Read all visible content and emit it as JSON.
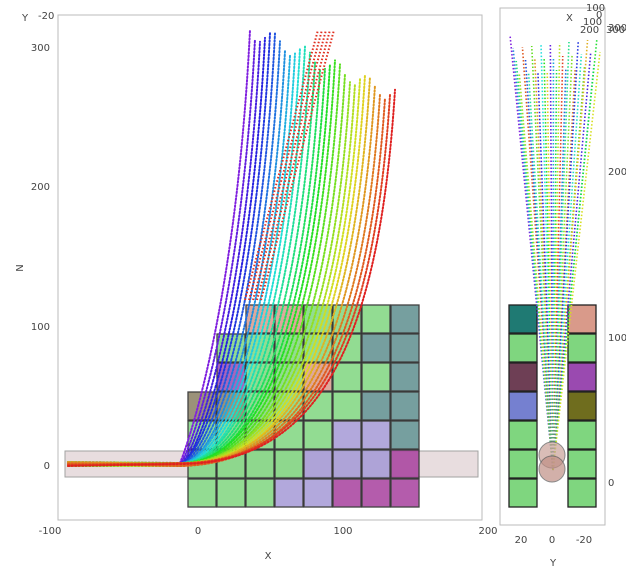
{
  "left_view": {
    "x_axis": {
      "label": "X",
      "ticks": [
        "-100",
        "0",
        "100",
        "200"
      ]
    },
    "z_axis": {
      "label": "N",
      "ticks": [
        "0",
        "100",
        "200",
        "300"
      ]
    },
    "corner": {
      "label": "Y",
      "tick": "-20"
    }
  },
  "right_view": {
    "y_axis": {
      "label": "Y",
      "ticks": [
        "20",
        "0",
        "-20"
      ]
    },
    "z_axis": {
      "ticks": [
        "0",
        "100",
        "200",
        "300"
      ]
    },
    "corner": {
      "label": "X",
      "ticks": [
        "100",
        "0",
        "100",
        "200",
        "300"
      ]
    }
  }
}
